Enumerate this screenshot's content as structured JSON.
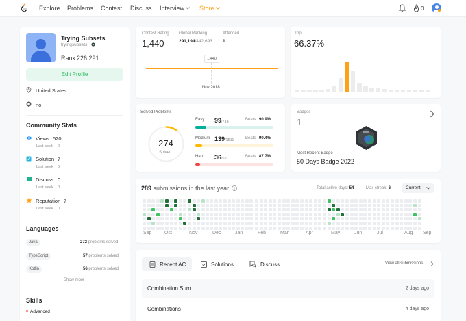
{
  "nav": {
    "items": [
      "Explore",
      "Problems",
      "Contest",
      "Discuss",
      "Interview",
      "Store"
    ],
    "notification_count": "0"
  },
  "profile": {
    "name": "Trying Subsets",
    "username": "tryingsubsets",
    "rank_label": "Rank",
    "rank_value": "226,291",
    "edit_button": "Edit Profile",
    "location": "United States",
    "github": "no"
  },
  "community": {
    "title": "Community Stats",
    "items": [
      {
        "label": "Views",
        "value": "520",
        "sub": "Last week",
        "sub_value": "0"
      },
      {
        "label": "Solution",
        "value": "7",
        "sub": "Last week",
        "sub_value": "0"
      },
      {
        "label": "Discuss",
        "value": "0",
        "sub": "Last week",
        "sub_value": "0"
      },
      {
        "label": "Reputation",
        "value": "7",
        "sub": "Last week",
        "sub_value": "0"
      }
    ]
  },
  "languages": {
    "title": "Languages",
    "items": [
      {
        "name": "Java",
        "count": "272",
        "suffix": "problems solved"
      },
      {
        "name": "TypeScript",
        "count": "57",
        "suffix": "problems solved"
      },
      {
        "name": "Kotlin",
        "count": "56",
        "suffix": "problems solved"
      }
    ],
    "show_more": "Show more"
  },
  "skills": {
    "title": "Skills",
    "first_level": "Advanced"
  },
  "contest": {
    "rating_label": "Contest Rating",
    "rating_value": "1,440",
    "global_label": "Global Ranking",
    "global_value": "291,194",
    "global_total": "/442,693",
    "attended_label": "Attended",
    "attended_value": "1",
    "chart_point_label": "1,440",
    "chart_date": "Nov 2018",
    "top_label": "Top",
    "top_value": "66.37%"
  },
  "solved": {
    "title": "Solved Problems",
    "total": "274",
    "total_label": "Solved",
    "levels": [
      {
        "name": "Easy",
        "solved": "99",
        "total": "/716",
        "beats_label": "Beats",
        "beats": "90.9%",
        "color": "#00af9b",
        "track": "#d9f2ee",
        "fraction": 0.138
      },
      {
        "name": "Medium",
        "solved": "139",
        "total": "/1511",
        "beats_label": "Beats",
        "beats": "90.4%",
        "color": "#ffb800",
        "track": "#fff3d9",
        "fraction": 0.092
      },
      {
        "name": "Hard",
        "solved": "36",
        "total": "/627",
        "beats_label": "Beats",
        "beats": "87.7%",
        "color": "#ef4743",
        "track": "#fde4e3",
        "fraction": 0.057
      }
    ]
  },
  "badges": {
    "title": "Badges",
    "count": "1",
    "recent_label": "Most Recent Badge",
    "recent_name": "50 Days Badge 2022"
  },
  "submissions": {
    "count": "289",
    "label": "submissions in the last year",
    "active_label": "Total active days:",
    "active_value": "54",
    "streak_label": "Max streak:",
    "streak_value": "6",
    "dropdown": "Current",
    "months": [
      "Sep",
      "Oct",
      "Nov",
      "Dec",
      "Jan",
      "Feb",
      "Mar",
      "Apr",
      "May",
      "Jun",
      "Jul",
      "Aug",
      "Sep"
    ]
  },
  "recent": {
    "tabs": [
      "Recent AC",
      "Solutions",
      "Discuss"
    ],
    "view_all": "View all submissions",
    "items": [
      {
        "title": "Combination Sum",
        "time": "2 days ago"
      },
      {
        "title": "Combinations",
        "time": "4 days ago"
      }
    ]
  },
  "colors": {
    "brand": "#ffa116",
    "easy": "#00af9b",
    "medium": "#ffb800",
    "hard": "#ef4743",
    "heat_light": "#b7e4c7",
    "heat_mid": "#40c463",
    "heat_dark": "#216e39"
  }
}
